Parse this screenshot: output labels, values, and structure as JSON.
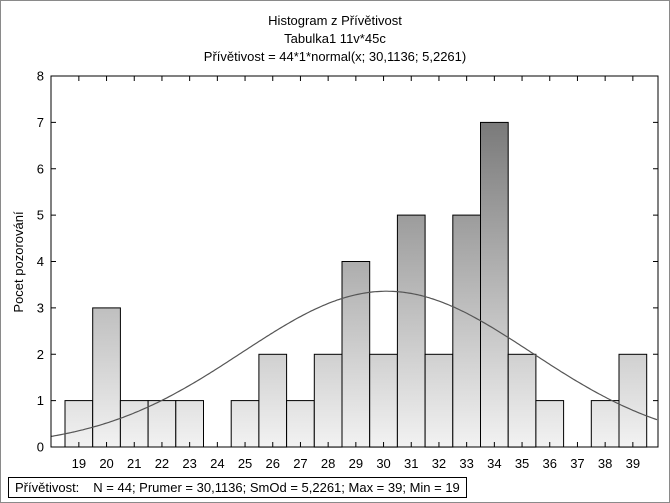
{
  "chart_data": {
    "type": "bar",
    "title": "Histogram z Přívětivost",
    "subtitle": "Tabulka1 11v*45c",
    "fit_label": "Přívětivost = 44*1*normal(x; 30,1136; 5,2261)",
    "ylabel": "Pocet pozorování",
    "xlabel": "",
    "categories": [
      "19",
      "20",
      "21",
      "22",
      "23",
      "24",
      "25",
      "26",
      "27",
      "28",
      "29",
      "30",
      "31",
      "32",
      "33",
      "34",
      "35",
      "36",
      "37",
      "38",
      "39"
    ],
    "values": [
      1,
      3,
      1,
      1,
      1,
      0,
      1,
      2,
      1,
      2,
      4,
      2,
      5,
      2,
      5,
      7,
      2,
      1,
      0,
      1,
      2
    ],
    "ylim": [
      0,
      8
    ],
    "yticks": [
      "0",
      "1",
      "2",
      "3",
      "4",
      "5",
      "6",
      "7",
      "8"
    ],
    "grid": false,
    "normal_fit": {
      "n": 44,
      "bin_width": 1,
      "mean": 30.1136,
      "sd": 5.2261
    }
  },
  "stats_box": {
    "variable": "Přívětivost:",
    "text": "N = 44; Prumer = 30,1136; SmOd = 5,2261; Max = 39; Min = 19"
  },
  "colors": {
    "bar_light": "#f2f2f2",
    "bar_dark": "#7a7a7a",
    "curve": "#555555"
  }
}
